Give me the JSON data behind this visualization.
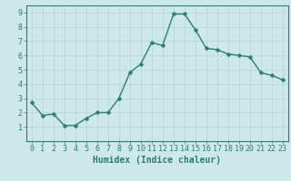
{
  "x": [
    0,
    1,
    2,
    3,
    4,
    5,
    6,
    7,
    8,
    9,
    10,
    11,
    12,
    13,
    14,
    15,
    16,
    17,
    18,
    19,
    20,
    21,
    22,
    23
  ],
  "y": [
    2.7,
    1.8,
    1.9,
    1.1,
    1.1,
    1.6,
    2.0,
    2.0,
    3.0,
    4.8,
    5.4,
    6.9,
    6.7,
    8.9,
    8.9,
    7.8,
    6.5,
    6.4,
    6.1,
    6.0,
    5.9,
    4.8,
    4.6,
    4.3
  ],
  "line_color": "#2e7d6e",
  "marker": "D",
  "marker_size": 2.5,
  "linewidth": 1.0,
  "xlabel": "Humidex (Indice chaleur)",
  "xlim": [
    -0.5,
    23.5
  ],
  "ylim": [
    0,
    9.5
  ],
  "xtick_labels": [
    "0",
    "1",
    "2",
    "3",
    "4",
    "5",
    "6",
    "7",
    "8",
    "9",
    "10",
    "11",
    "12",
    "13",
    "14",
    "15",
    "16",
    "17",
    "18",
    "19",
    "20",
    "21",
    "22",
    "23"
  ],
  "ytick_values": [
    1,
    2,
    3,
    4,
    5,
    6,
    7,
    8,
    9
  ],
  "background_color": "#cce8e8",
  "grid_color": "#b8d8d8",
  "axis_color": "#2e7d6e",
  "xlabel_fontsize": 7,
  "tick_fontsize": 6,
  "font_color": "#2e7d6e"
}
